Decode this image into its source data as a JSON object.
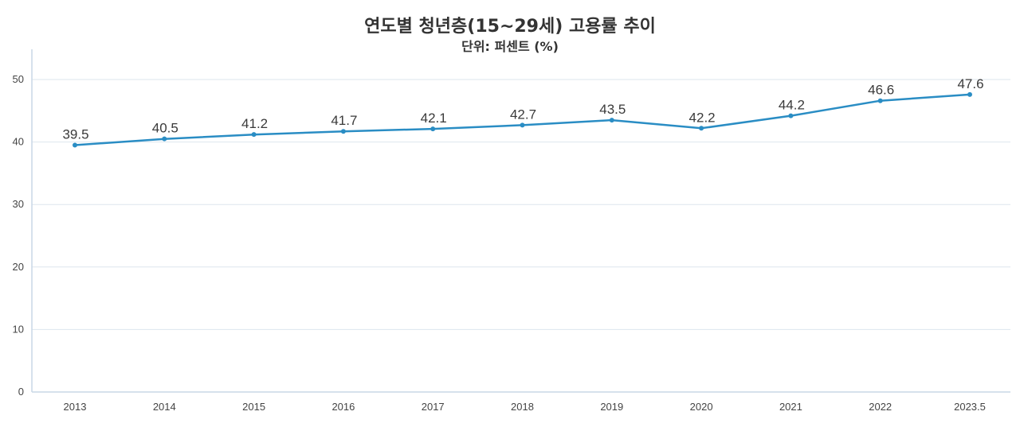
{
  "chart_data": {
    "type": "line",
    "title": "연도별 청년층(15~29세) 고용률 추이",
    "subtitle": "단위: 퍼센트 (%)",
    "categories": [
      "2013",
      "2014",
      "2015",
      "2016",
      "2017",
      "2018",
      "2019",
      "2020",
      "2021",
      "2022",
      "2023.5"
    ],
    "values": [
      39.5,
      40.5,
      41.2,
      41.7,
      42.1,
      42.7,
      43.5,
      42.2,
      44.2,
      46.6,
      47.6
    ],
    "data_labels": [
      "39.5",
      "40.5",
      "41.2",
      "41.7",
      "42.1",
      "42.7",
      "43.5",
      "42.2",
      "44.2",
      "46.6",
      "47.6"
    ],
    "y_ticks": [
      "0",
      "10",
      "20",
      "30",
      "40",
      "50"
    ],
    "ylim": [
      0,
      55
    ],
    "grid": true,
    "legend": "none",
    "color": "#2a8dc4"
  }
}
